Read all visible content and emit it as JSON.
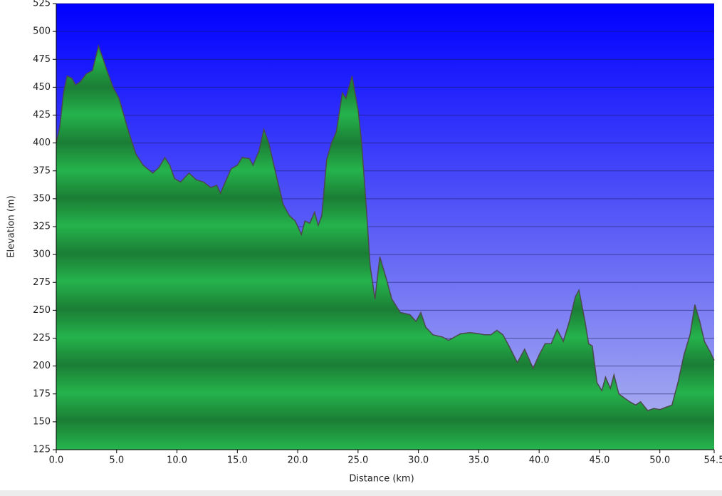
{
  "chart_data": {
    "type": "area",
    "x_label": "Distance  (km)",
    "y_label": "Elevation (m)",
    "xlim": [
      0,
      54.5
    ],
    "ylim": [
      125,
      525
    ],
    "xticks": [
      {
        "value": 0,
        "label": "0.0"
      },
      {
        "value": 5,
        "label": "5.0"
      },
      {
        "value": 10,
        "label": "10.0"
      },
      {
        "value": 15,
        "label": "15.0"
      },
      {
        "value": 20,
        "label": "20.0"
      },
      {
        "value": 25,
        "label": "25.0"
      },
      {
        "value": 30,
        "label": "30.0"
      },
      {
        "value": 35,
        "label": "35.0"
      },
      {
        "value": 40,
        "label": "40.0"
      },
      {
        "value": 45,
        "label": "45.0"
      },
      {
        "value": 50,
        "label": "50.0"
      },
      {
        "value": 54.5,
        "label": "54.5"
      }
    ],
    "yticks": [
      125,
      150,
      175,
      200,
      225,
      250,
      275,
      300,
      325,
      350,
      375,
      400,
      425,
      450,
      475,
      500,
      525
    ],
    "grid": true,
    "color": "#22b04a",
    "x": [
      0,
      0.3,
      0.6,
      0.9,
      1.3,
      1.6,
      2.0,
      2.5,
      3.0,
      3.3,
      3.5,
      3.8,
      4.2,
      4.7,
      5.2,
      5.6,
      6.0,
      6.6,
      7.2,
      8.0,
      8.5,
      9.0,
      9.4,
      9.8,
      10.3,
      11.0,
      11.6,
      12.2,
      12.8,
      13.3,
      13.6,
      14.0,
      14.5,
      15.0,
      15.4,
      16.0,
      16.3,
      16.8,
      17.2,
      17.6,
      18.2,
      18.8,
      19.3,
      19.8,
      20.3,
      20.6,
      21.0,
      21.4,
      21.7,
      22.0,
      22.4,
      22.8,
      23.2,
      23.7,
      24.0,
      24.5,
      25.0,
      25.3,
      25.7,
      26.0,
      26.4,
      26.8,
      27.3,
      27.8,
      28.5,
      29.3,
      29.8,
      30.2,
      30.6,
      31.2,
      32.0,
      32.5,
      33.0,
      33.5,
      34.3,
      35.0,
      35.5,
      36.0,
      36.5,
      37.0,
      37.5,
      38.2,
      38.8,
      39.5,
      40.0,
      40.5,
      41.0,
      41.5,
      42.0,
      42.5,
      43.0,
      43.3,
      43.8,
      44.1,
      44.4,
      44.8,
      45.2,
      45.5,
      45.9,
      46.2,
      46.6,
      47.5,
      48.0,
      48.4,
      49.0,
      49.5,
      50.0,
      50.5,
      51.0,
      51.5,
      52.0,
      52.5,
      52.9,
      53.3,
      53.7,
      54.2,
      54.5
    ],
    "values": [
      400,
      415,
      445,
      460,
      458,
      452,
      455,
      462,
      465,
      478,
      487,
      478,
      465,
      450,
      440,
      425,
      410,
      390,
      380,
      373,
      378,
      387,
      380,
      368,
      365,
      373,
      367,
      365,
      360,
      362,
      355,
      365,
      377,
      380,
      387,
      386,
      380,
      393,
      412,
      400,
      372,
      345,
      335,
      330,
      318,
      330,
      328,
      338,
      326,
      335,
      385,
      400,
      410,
      445,
      440,
      460,
      430,
      400,
      340,
      290,
      260,
      298,
      280,
      260,
      248,
      246,
      240,
      248,
      235,
      228,
      226,
      223,
      226,
      229,
      230,
      229,
      228,
      228,
      232,
      228,
      218,
      203,
      215,
      198,
      210,
      220,
      220,
      233,
      222,
      240,
      262,
      268,
      240,
      220,
      218,
      185,
      178,
      190,
      180,
      192,
      175,
      168,
      165,
      168,
      160,
      162,
      161,
      163,
      165,
      185,
      210,
      228,
      255,
      240,
      222,
      212,
      205
    ]
  }
}
